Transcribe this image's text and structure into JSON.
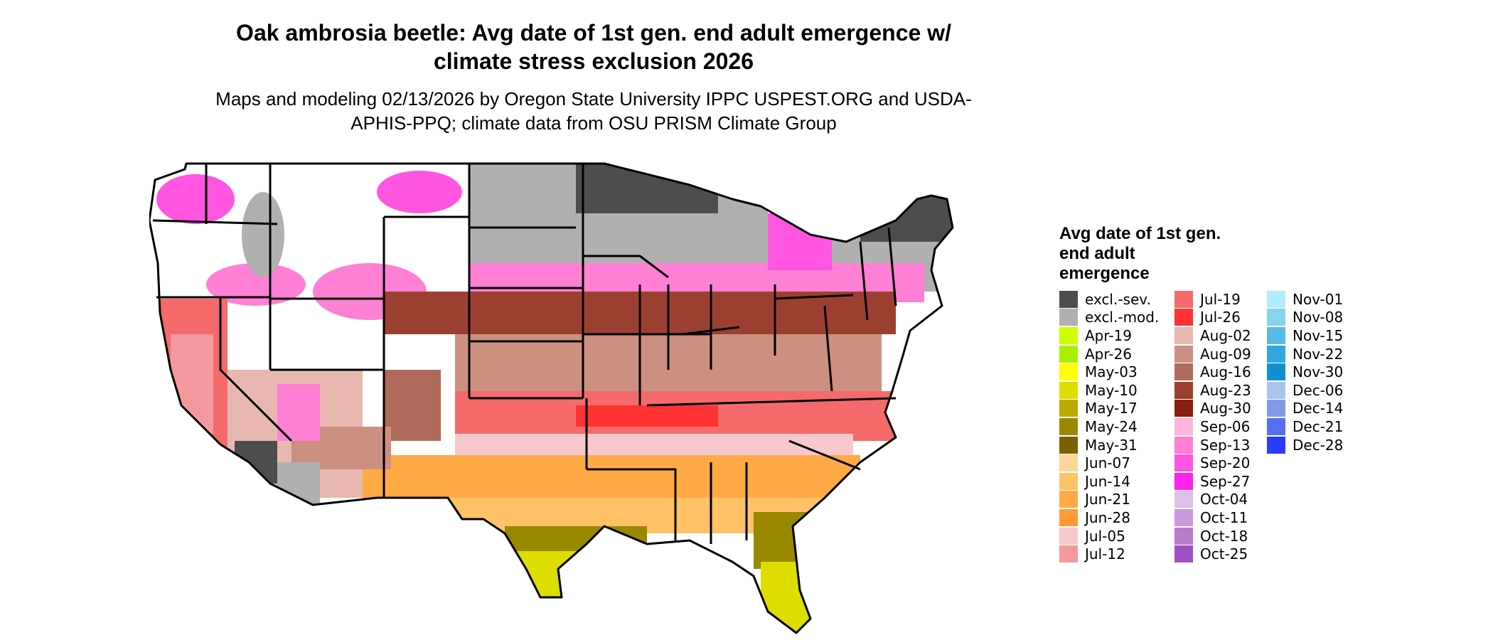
{
  "title": "Oak ambrosia beetle: Avg date of 1st gen. end adult emergence w/ climate stress exclusion 2026",
  "subtitle": "Maps and modeling 02/13/2026 by Oregon State University IPPC USPEST.ORG and USDA-APHIS-PPQ; climate data from OSU PRISM Climate Group",
  "map": {
    "region": "contiguous-united-states"
  },
  "legend": {
    "title": "Avg date of 1st gen. end adult emergence",
    "columns": [
      [
        {
          "label": "excl.-sev.",
          "color": "#4d4d4d"
        },
        {
          "label": "excl.-mod.",
          "color": "#b0b0b0"
        },
        {
          "label": "Apr-19",
          "color": "#ccff00"
        },
        {
          "label": "Apr-26",
          "color": "#aaee00"
        },
        {
          "label": "May-03",
          "color": "#ffff00"
        },
        {
          "label": "May-10",
          "color": "#dddd00"
        },
        {
          "label": "May-17",
          "color": "#bbaa00"
        },
        {
          "label": "May-24",
          "color": "#998800"
        },
        {
          "label": "May-31",
          "color": "#7a6000"
        },
        {
          "label": "Jun-07",
          "color": "#ffd699"
        },
        {
          "label": "Jun-14",
          "color": "#ffc266"
        },
        {
          "label": "Jun-21",
          "color": "#ffaa44"
        },
        {
          "label": "Jun-28",
          "color": "#ff9933"
        },
        {
          "label": "Jul-05",
          "color": "#f7c8cc"
        },
        {
          "label": "Jul-12",
          "color": "#f4999e"
        }
      ],
      [
        {
          "label": "Jul-19",
          "color": "#f56b6b"
        },
        {
          "label": "Jul-26",
          "color": "#ff3333"
        },
        {
          "label": "Aug-02",
          "color": "#e8b8b0"
        },
        {
          "label": "Aug-09",
          "color": "#cc9080"
        },
        {
          "label": "Aug-16",
          "color": "#b06a5a"
        },
        {
          "label": "Aug-23",
          "color": "#9b4030"
        },
        {
          "label": "Aug-30",
          "color": "#8b2010"
        },
        {
          "label": "Sep-06",
          "color": "#ffb3dd"
        },
        {
          "label": "Sep-13",
          "color": "#ff80d4"
        },
        {
          "label": "Sep-20",
          "color": "#ff55e0"
        },
        {
          "label": "Sep-27",
          "color": "#ff22ee"
        },
        {
          "label": "Oct-04",
          "color": "#e0c0e8"
        },
        {
          "label": "Oct-11",
          "color": "#cc99dd"
        },
        {
          "label": "Oct-18",
          "color": "#b77acc"
        },
        {
          "label": "Oct-25",
          "color": "#a050c0"
        }
      ],
      [
        {
          "label": "Nov-01",
          "color": "#b3ecff"
        },
        {
          "label": "Nov-08",
          "color": "#88d4f0"
        },
        {
          "label": "Nov-15",
          "color": "#5ab8e6"
        },
        {
          "label": "Nov-22",
          "color": "#33a8e0"
        },
        {
          "label": "Nov-30",
          "color": "#1090d0"
        },
        {
          "label": "Dec-06",
          "color": "#a8c4ee"
        },
        {
          "label": "Dec-14",
          "color": "#7f9ae8"
        },
        {
          "label": "Dec-21",
          "color": "#5570ee"
        },
        {
          "label": "Dec-28",
          "color": "#2a3cff"
        }
      ]
    ]
  }
}
